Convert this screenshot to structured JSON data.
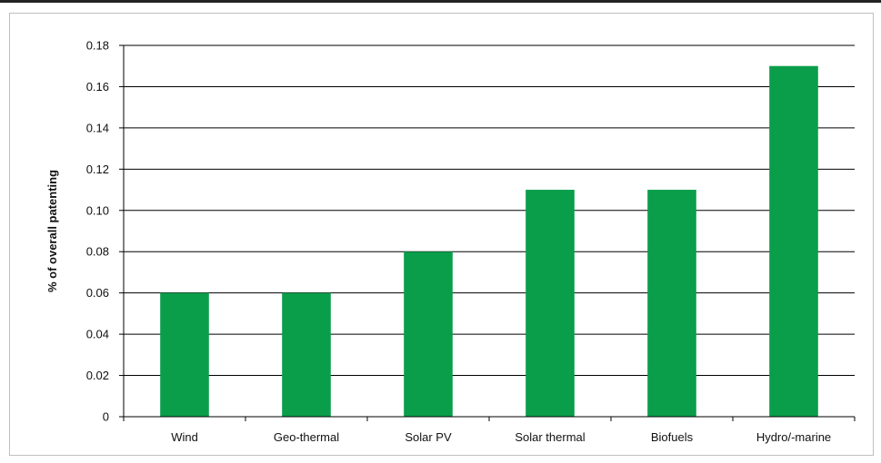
{
  "chart_data": {
    "type": "bar",
    "categories": [
      "Wind",
      "Geo-thermal",
      "Solar PV",
      "Solar thermal",
      "Biofuels",
      "Hydro/-marine"
    ],
    "values": [
      0.06,
      0.06,
      0.08,
      0.11,
      0.11,
      0.17
    ],
    "title": "",
    "xlabel": "",
    "ylabel": "% of overall patenting",
    "ylim": [
      0,
      0.18
    ],
    "yticks": [
      "0",
      "0.02",
      "0.04",
      "0.06",
      "0.08",
      "0.10",
      "0.12",
      "0.14",
      "0.16",
      "0.18"
    ],
    "grid": true,
    "legend": "none",
    "bar_color": "#0a9e4a",
    "grid_color": "#000000"
  }
}
